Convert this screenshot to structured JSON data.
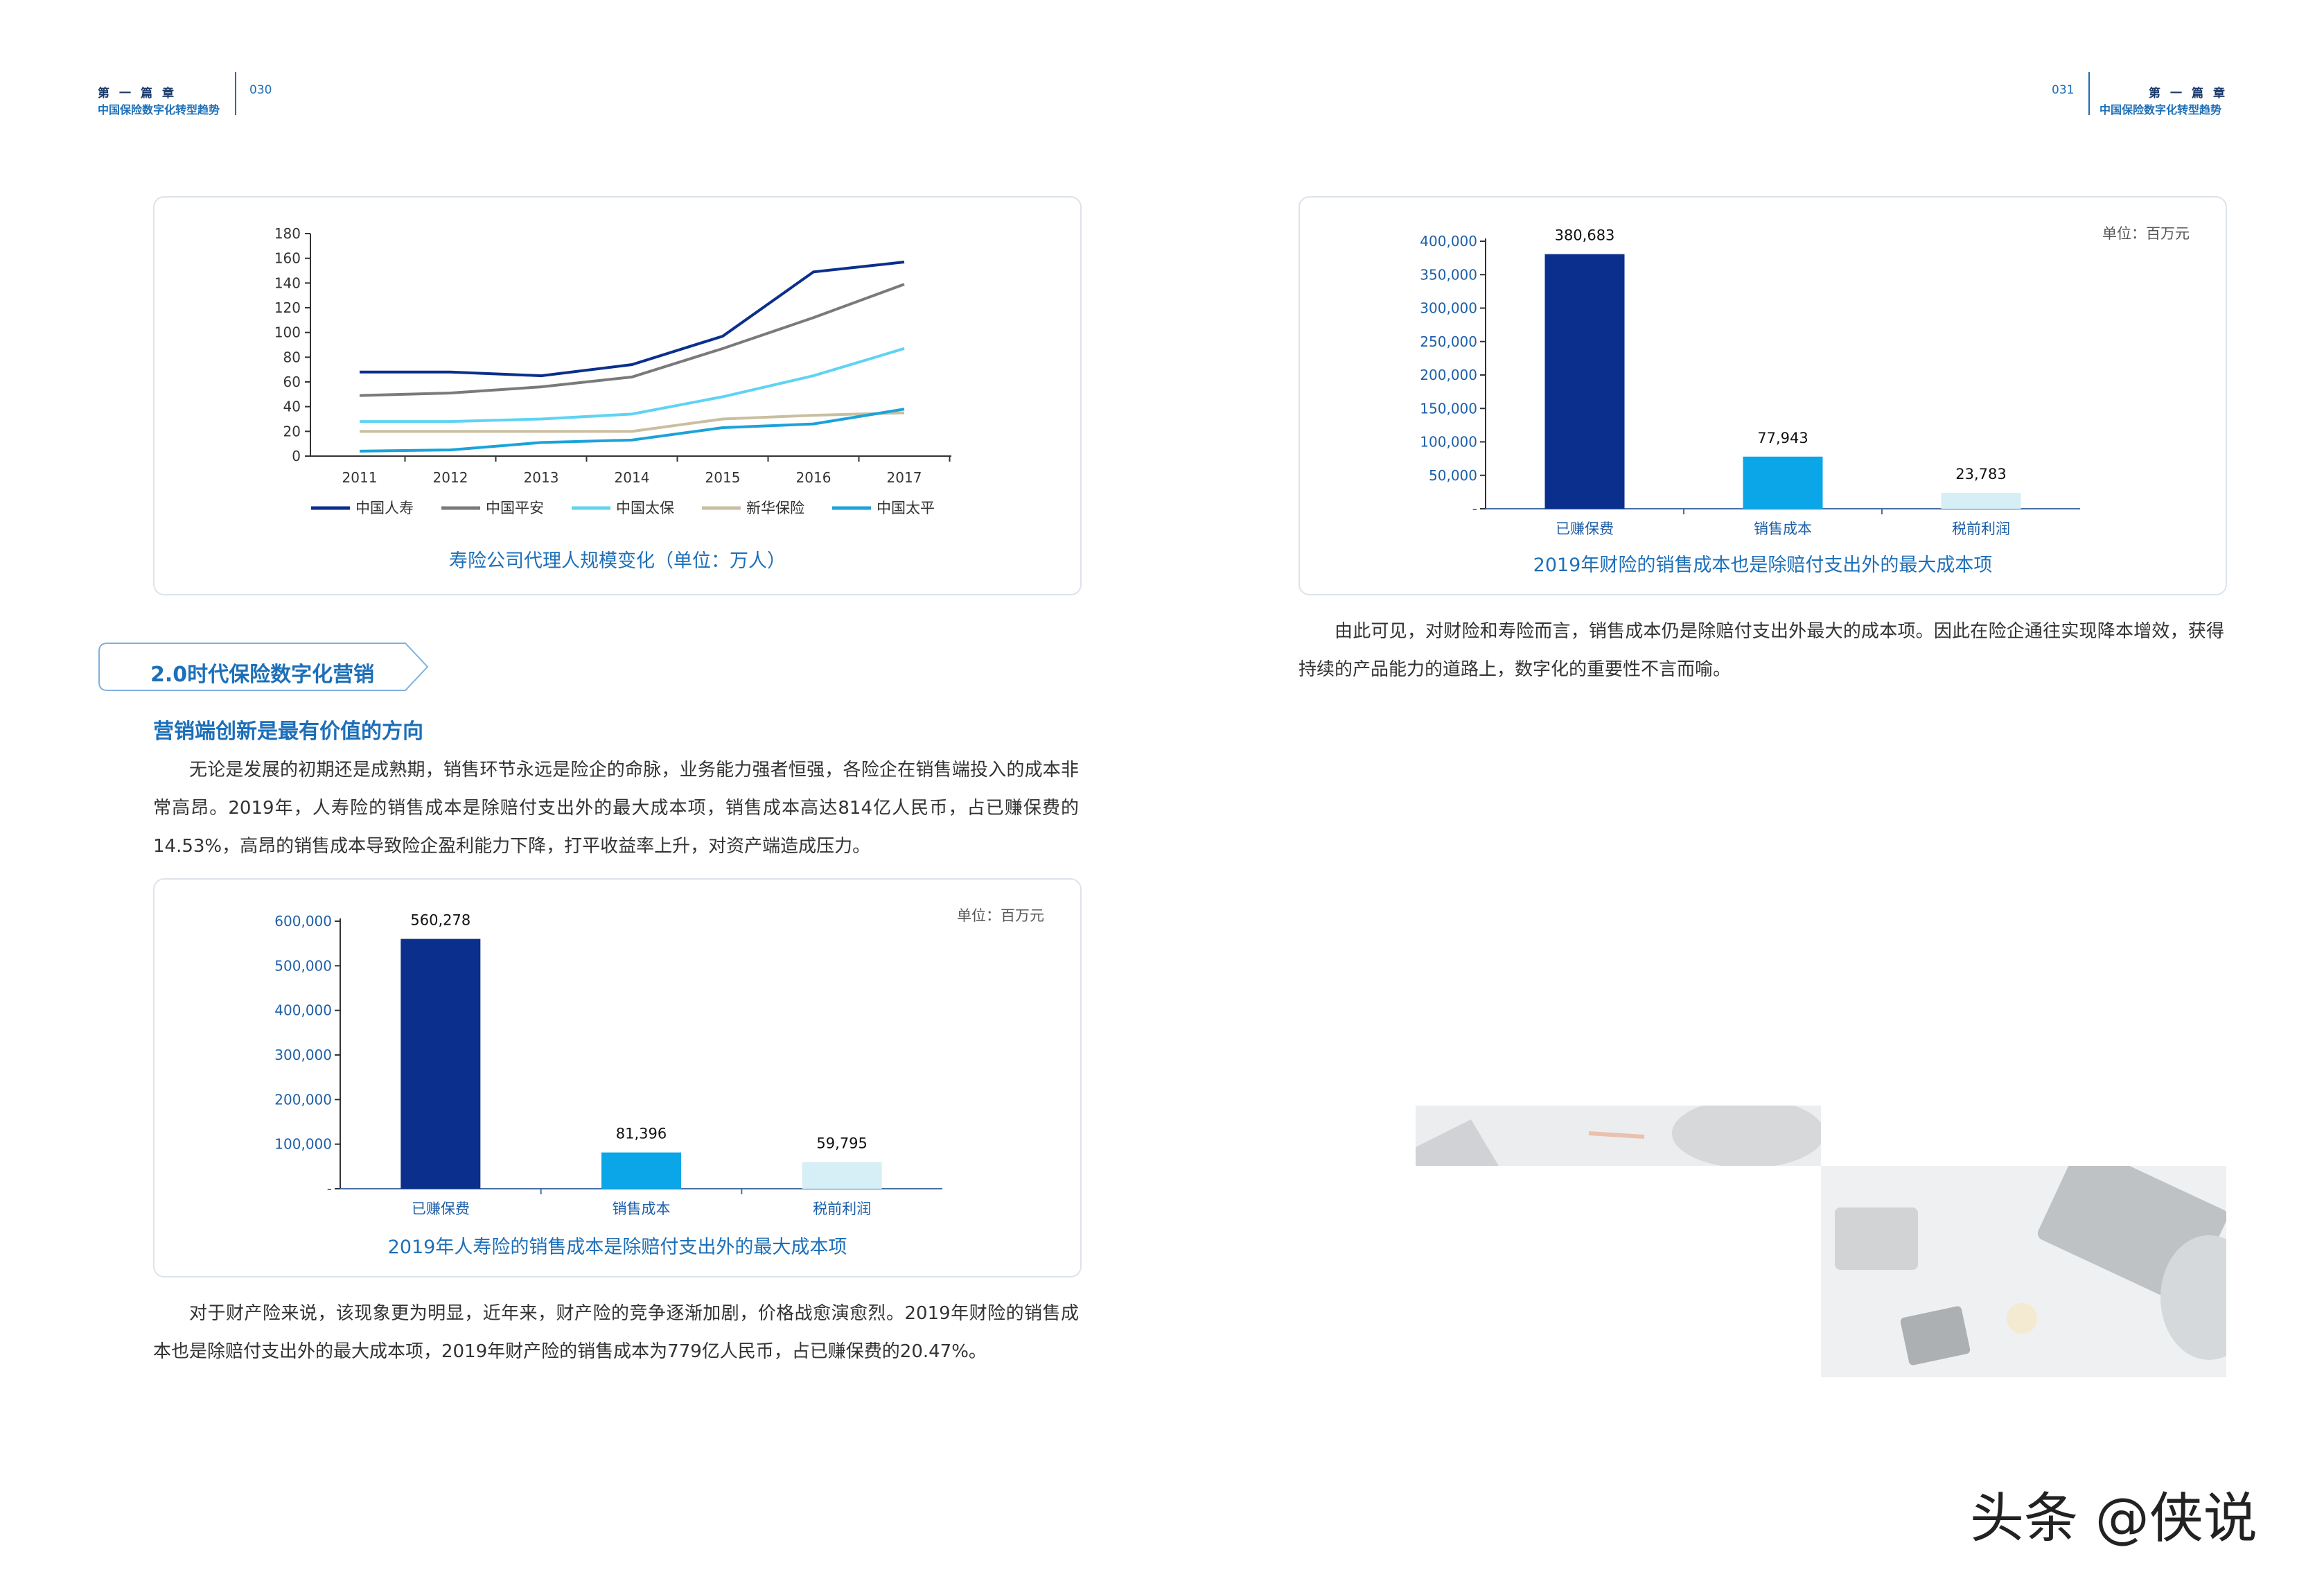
{
  "left_header": {
    "chapter": "第一篇章",
    "subtitle": "中国保险数字化转型趋势",
    "page": "030"
  },
  "right_header": {
    "chapter": "第一篇章",
    "subtitle": "中国保险数字化转型趋势",
    "page": "031"
  },
  "section": {
    "tag": "2.0时代保险数字化营销",
    "subhead": "营销端创新是最有价值的方向"
  },
  "paragraphs": {
    "p1": "无论是发展的初期还是成熟期，销售环节永远是险企的命脉，业务能力强者恒强，各险企在销售端投入的成本非常高昂。2019年，人寿险的销售成本是除赔付支出外的最大成本项，销售成本高达814亿人民币，占已赚保费的14.53%，高昂的销售成本导致险企盈利能力下降，打平收益率上升，对资产端造成压力。",
    "p2": "对于财产险来说，该现象更为明显，近年来，财产险的竞争逐渐加剧，价格战愈演愈烈。2019年财险的销售成本也是除赔付支出外的最大成本项，2019年财产险的销售成本为779亿人民币，占已赚保费的20.47%。",
    "p3": "由此可见，对财险和寿险而言，销售成本仍是除赔付支出外最大的成本项。因此在险企通往实现降本增效，获得持续的产品能力的道路上，数字化的重要性不言而喻。"
  },
  "colors": {
    "navy": "#0a2f8c",
    "grey": "#7a7a7a",
    "light_blue": "#5fd3f3",
    "beige": "#c9bfa0",
    "blue": "#1aa3d9",
    "bright_blue": "#0aa6e8",
    "pale": "#d6eef6"
  },
  "chart_data": [
    {
      "type": "line",
      "title": "寿险公司代理人规模变化（单位：万人）",
      "x": [
        "2011",
        "2012",
        "2013",
        "2014",
        "2015",
        "2016",
        "2017"
      ],
      "ylim": [
        0,
        180
      ],
      "yticks": [
        "0",
        "20",
        "40",
        "60",
        "80",
        "100",
        "120",
        "140",
        "160",
        "180"
      ],
      "series": [
        {
          "name": "中国人寿",
          "color": "#0a2f8c",
          "values": [
            68,
            68,
            65,
            74,
            97,
            149,
            157
          ]
        },
        {
          "name": "中国平安",
          "color": "#7a7a7a",
          "values": [
            49,
            51,
            56,
            64,
            87,
            112,
            139
          ]
        },
        {
          "name": "中国太保",
          "color": "#5fd3f3",
          "values": [
            28,
            28,
            30,
            34,
            48,
            65,
            87
          ]
        },
        {
          "name": "新华保险",
          "color": "#c9bfa0",
          "values": [
            20,
            20,
            20,
            20,
            30,
            33,
            35
          ]
        },
        {
          "name": "中国太平",
          "color": "#1aa3d9",
          "values": [
            4,
            5,
            11,
            13,
            23,
            26,
            38
          ]
        }
      ],
      "legend": "bottom"
    },
    {
      "type": "bar",
      "title": "2019年人寿险的销售成本是除赔付支出外的最大成本项",
      "unit": "单位：百万元",
      "categories": [
        "已赚保费",
        "销售成本",
        "税前利润"
      ],
      "values": [
        560278,
        81396,
        59795
      ],
      "value_labels": [
        "560,278",
        "81,396",
        "59,795"
      ],
      "colors": [
        "#0a2f8c",
        "#0aa6e8",
        "#d6eef6"
      ],
      "ylim": [
        0,
        600000
      ],
      "yticks": [
        "-",
        "100,000",
        "200,000",
        "300,000",
        "400,000",
        "500,000",
        "600,000"
      ]
    },
    {
      "type": "bar",
      "title": "2019年财险的销售成本也是除赔付支出外的最大成本项",
      "unit": "单位：百万元",
      "categories": [
        "已赚保费",
        "销售成本",
        "税前利润"
      ],
      "values": [
        380683,
        77943,
        23783
      ],
      "value_labels": [
        "380,683",
        "77,943",
        "23,783"
      ],
      "colors": [
        "#0a2f8c",
        "#0aa6e8",
        "#d6eef6"
      ],
      "ylim": [
        0,
        400000
      ],
      "yticks": [
        "-",
        "50,000",
        "100,000",
        "150,000",
        "200,000",
        "250,000",
        "300,000",
        "350,000",
        "400,000"
      ]
    }
  ],
  "watermark": "头条 @侠说"
}
